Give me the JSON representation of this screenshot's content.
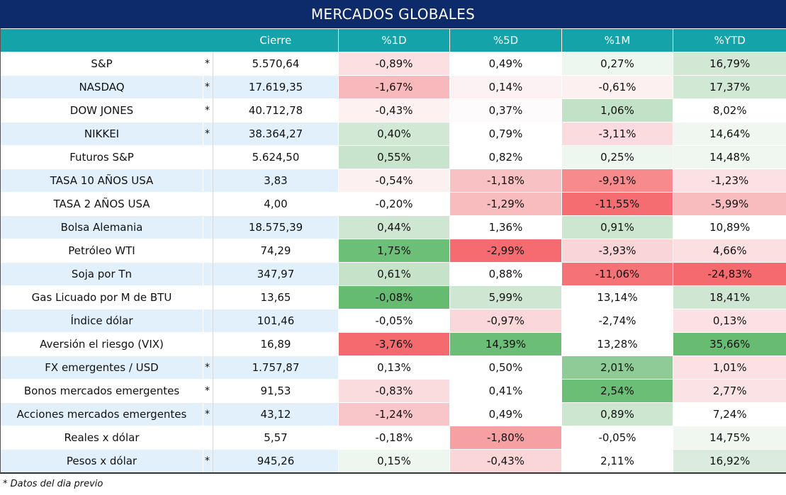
{
  "title": "MERCADOS GLOBALES",
  "columns": {
    "close": "Cierre",
    "d1": "%1D",
    "d5": "%5D",
    "m1": "%1M",
    "ytd": "%YTD"
  },
  "rows": [
    {
      "name": "S&P",
      "mark": "*",
      "close": "5.570,64",
      "d1": "-0,89%",
      "d5": "0,49%",
      "m1": "0,27%",
      "ytd": "16,79%",
      "colors": [
        "#fbdfe1",
        "#ffffff",
        "#eef6f0",
        "#d2e8d5"
      ]
    },
    {
      "name": "NASDAQ",
      "mark": "*",
      "close": "17.619,35",
      "d1": "-1,67%",
      "d5": "0,14%",
      "m1": "-0,61%",
      "ytd": "17,37%",
      "colors": [
        "#f8b9bc",
        "#fdf2f3",
        "#fdf0f1",
        "#d1e8d4"
      ]
    },
    {
      "name": "DOW JONES",
      "mark": "*",
      "close": "40.712,78",
      "d1": "-0,43%",
      "d5": "0,37%",
      "m1": "1,06%",
      "ytd": "8,02%",
      "colors": [
        "#fdf1f2",
        "#fdfbfb",
        "#c1e2c6",
        "#ffffff"
      ]
    },
    {
      "name": "NIKKEI",
      "mark": "*",
      "close": "38.364,27",
      "d1": "0,40%",
      "d5": "0,79%",
      "m1": "-3,11%",
      "ytd": "14,64%",
      "colors": [
        "#d1e8d4",
        "#ffffff",
        "#fbdbdd",
        "#f0f7f1"
      ]
    },
    {
      "name": "Futuros S&P",
      "mark": "",
      "close": "5.624,50",
      "d1": "0,55%",
      "d5": "0,82%",
      "m1": "0,25%",
      "ytd": "14,48%",
      "colors": [
        "#c9e4cd",
        "#ffffff",
        "#eef6f0",
        "#f0f7f1"
      ]
    },
    {
      "name": "TASA 10 AÑOS USA",
      "mark": "",
      "close": "3,83",
      "d1": "-0,54%",
      "d5": "-1,18%",
      "m1": "-9,91%",
      "ytd": "-1,23%",
      "colors": [
        "#fcf0f1",
        "#f8c1c4",
        "#f68a8d",
        "#fbe1e3"
      ]
    },
    {
      "name": "TASA 2 AÑOS USA",
      "mark": "",
      "close": "4,00",
      "d1": "-0,20%",
      "d5": "-1,29%",
      "m1": "-11,55%",
      "ytd": "-5,99%",
      "colors": [
        "#ffffff",
        "#f8bbbe",
        "#f56d71",
        "#f8bcbf"
      ]
    },
    {
      "name": "Bolsa Alemania",
      "mark": "",
      "close": "18.575,39",
      "d1": "0,44%",
      "d5": "1,36%",
      "m1": "0,91%",
      "ytd": "10,89%",
      "colors": [
        "#cfe7d2",
        "#ffffff",
        "#cde6d0",
        "#ffffff"
      ]
    },
    {
      "name": "Petróleo WTI",
      "mark": "",
      "close": "74,29",
      "d1": "1,75%",
      "d5": "-2,99%",
      "m1": "-3,93%",
      "ytd": "4,66%",
      "colors": [
        "#6cbf77",
        "#f56b6f",
        "#fad5d7",
        "#fbdfe1"
      ]
    },
    {
      "name": "Soja por Tn",
      "mark": "",
      "close": "347,97",
      "d1": "0,61%",
      "d5": "0,88%",
      "m1": "-11,06%",
      "ytd": "-24,83%",
      "colors": [
        "#c6e3ca",
        "#ffffff",
        "#f57276",
        "#f56a6e"
      ]
    },
    {
      "name": "Gas Licuado por M de BTU",
      "mark": "",
      "close": "13,65",
      "d1": "-0,08%",
      "d5": "5,99%",
      "m1": "13,14%",
      "ytd": "18,41%",
      "colors": [
        "#65bb70",
        "#cfe7d2",
        "#ffffff",
        "#cfe7d2"
      ]
    },
    {
      "name": "Índice dólar",
      "mark": "",
      "close": "101,46",
      "d1": "-0,05%",
      "d5": "-0,97%",
      "m1": "-2,74%",
      "ytd": "0,13%",
      "colors": [
        "#ffffff",
        "#fad7d9",
        "#ffffff",
        "#fbe1e3"
      ]
    },
    {
      "name": "Aversión el riesgo (VIX)",
      "mark": "",
      "close": "16,89",
      "d1": "-3,76%",
      "d5": "14,39%",
      "m1": "13,28%",
      "ytd": "35,66%",
      "colors": [
        "#f56a6e",
        "#6abe75",
        "#ffffff",
        "#67bc72"
      ]
    },
    {
      "name": "FX emergentes / USD",
      "mark": "*",
      "close": "1.757,87",
      "d1": "0,13%",
      "d5": "0,50%",
      "m1": "2,01%",
      "ytd": "1,01%",
      "colors": [
        "#ffffff",
        "#ffffff",
        "#8fcb97",
        "#fbe1e3"
      ]
    },
    {
      "name": "Bonos mercados emergentes",
      "mark": "*",
      "close": "91,53",
      "d1": "-0,83%",
      "d5": "0,41%",
      "m1": "2,54%",
      "ytd": "2,77%",
      "colors": [
        "#fadcde",
        "#ffffff",
        "#6abe75",
        "#fbe2e4"
      ]
    },
    {
      "name": "Acciones mercados emergentes",
      "mark": "*",
      "close": "43,12",
      "d1": "-1,24%",
      "d5": "0,49%",
      "m1": "0,89%",
      "ytd": "7,24%",
      "colors": [
        "#f8c6c9",
        "#ffffff",
        "#cde6d0",
        "#ffffff"
      ]
    },
    {
      "name": "Reales x dólar",
      "mark": "",
      "close": "5,57",
      "d1": "-0,18%",
      "d5": "-1,80%",
      "m1": "-0,05%",
      "ytd": "14,75%",
      "colors": [
        "#ffffff",
        "#f6a0a3",
        "#ffffff",
        "#f0f7f1"
      ]
    },
    {
      "name": "Pesos x dólar",
      "mark": "*",
      "close": "945,26",
      "d1": "0,15%",
      "d5": "-0,43%",
      "m1": "2,11%",
      "ytd": "16,92%",
      "colors": [
        "#eef6f0",
        "#fad6d8",
        "#ffffff",
        "#dbecde"
      ]
    }
  ],
  "footnote": "* Datos del dia previo"
}
